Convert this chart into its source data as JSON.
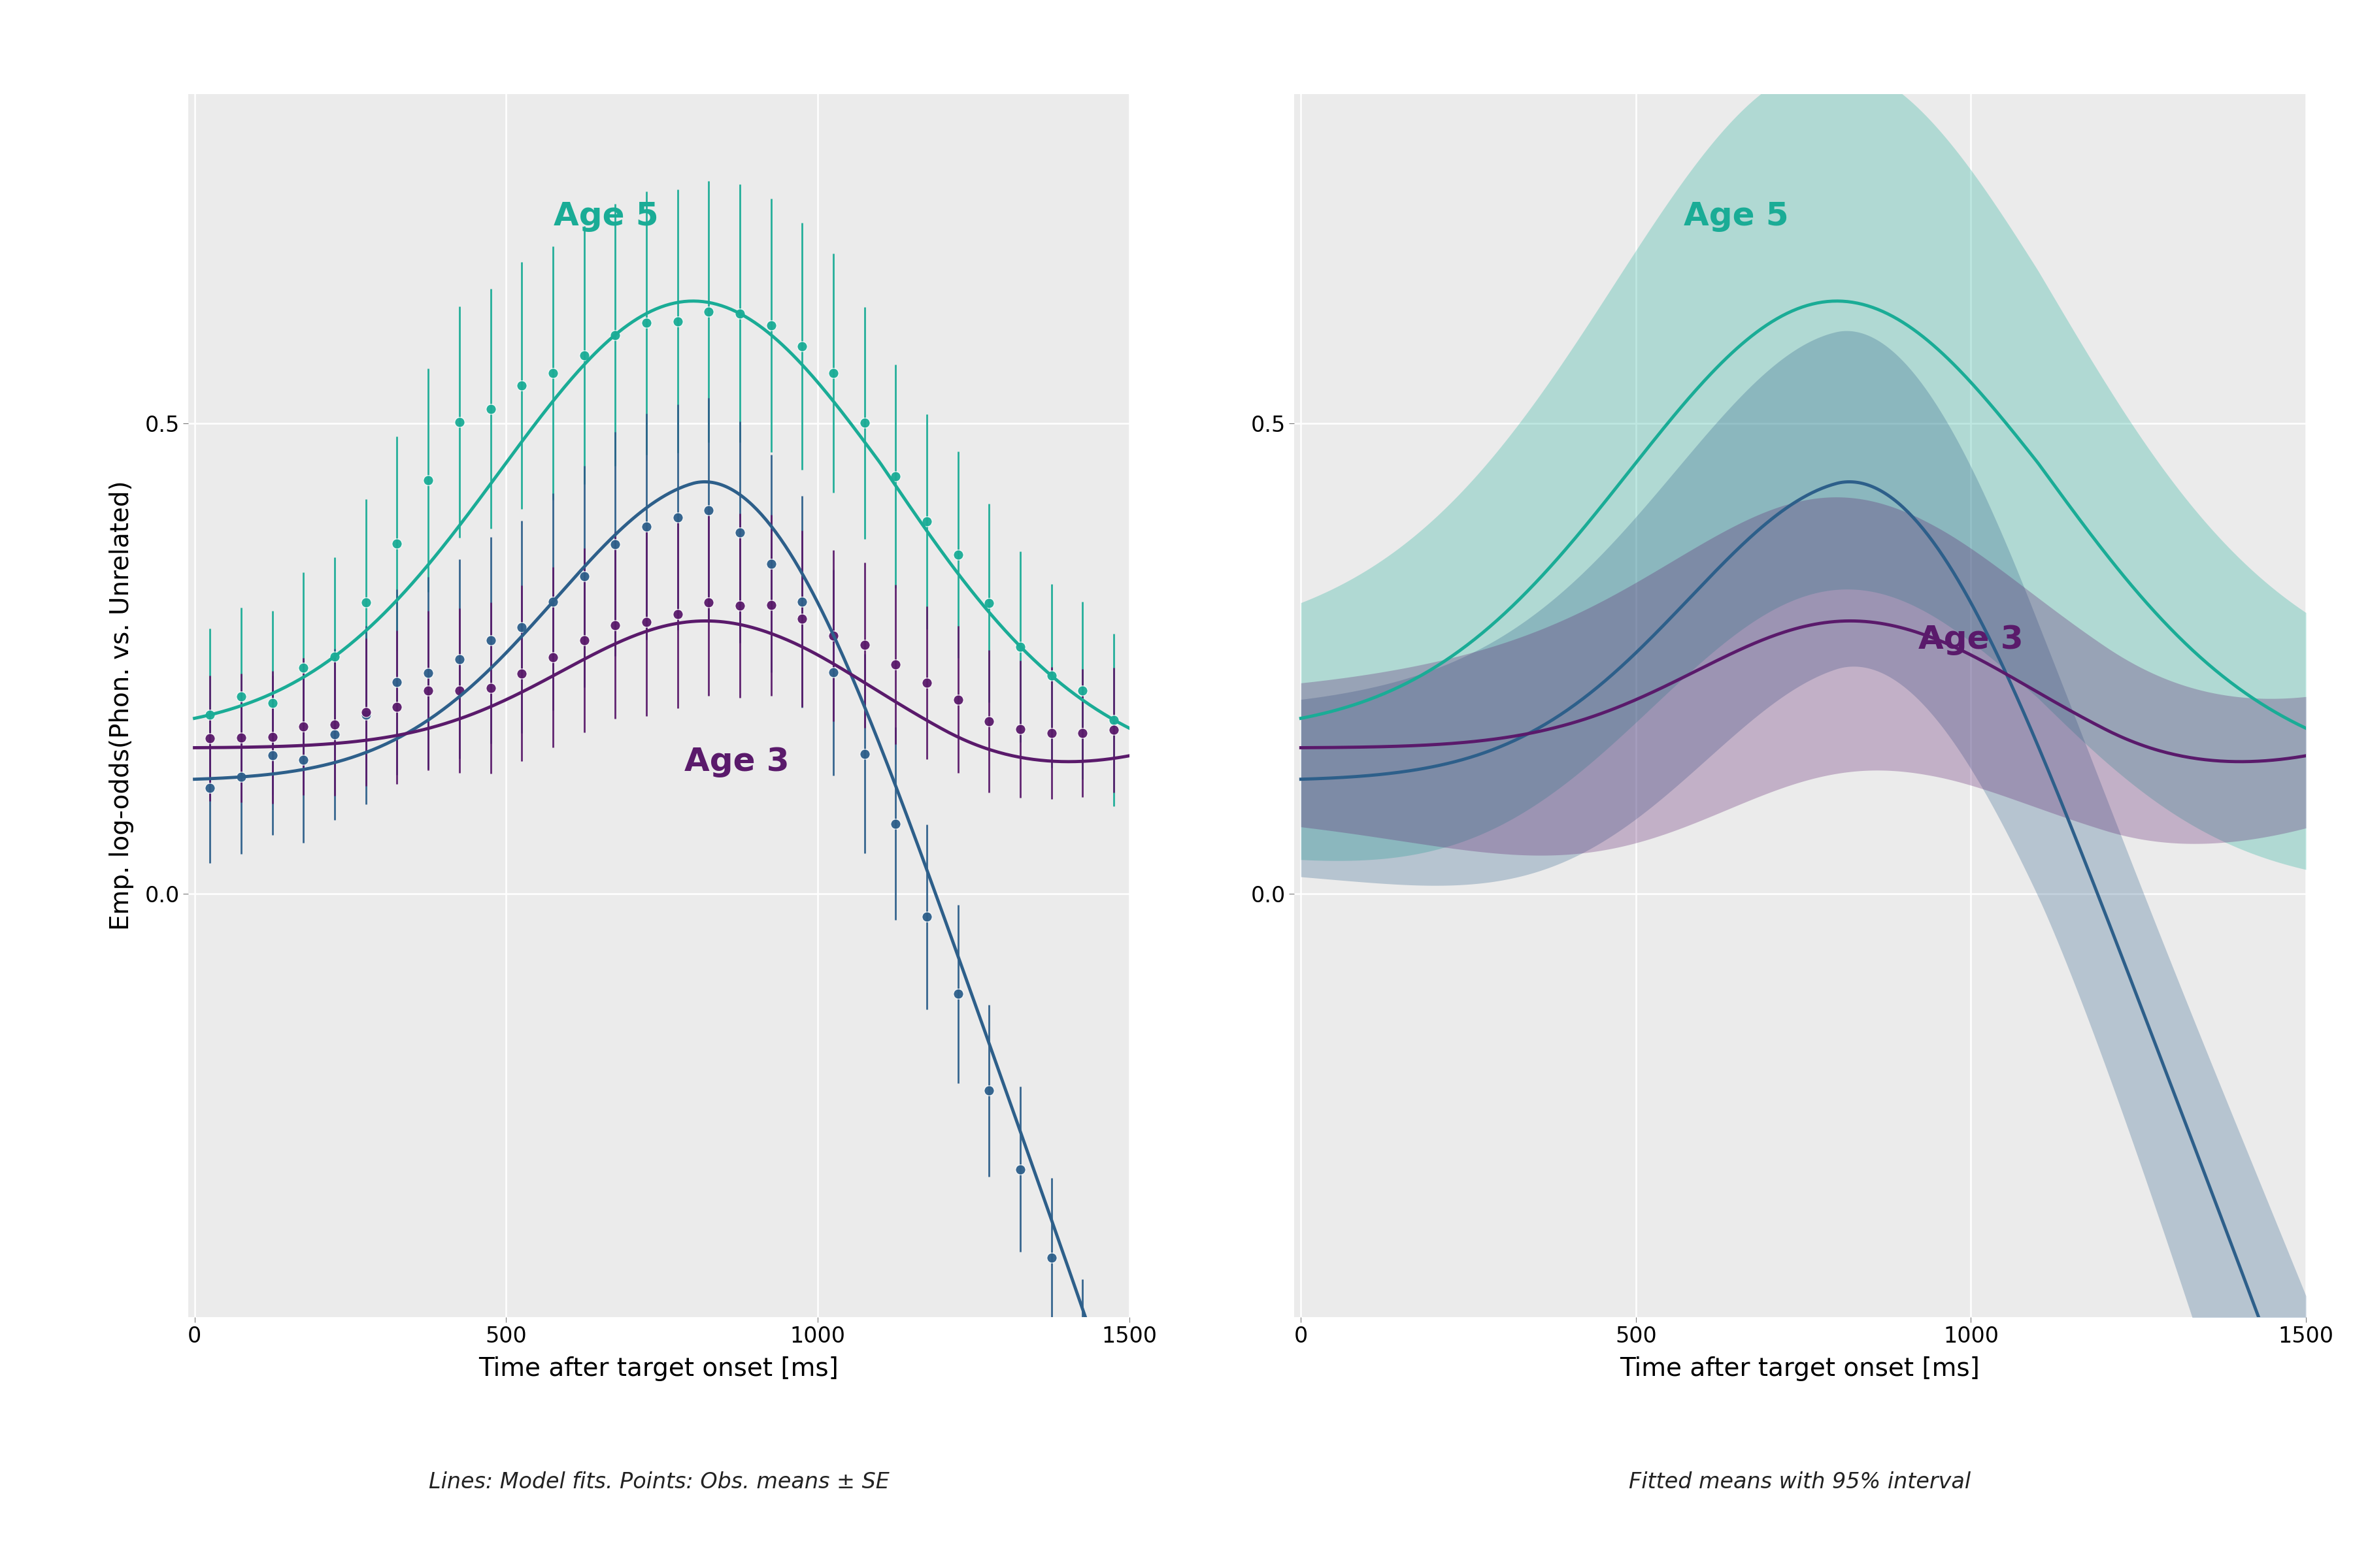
{
  "background_color": "#ffffff",
  "panel_bg": "#ebebeb",
  "colors": {
    "age3": "#5a1a6b",
    "age4": "#2d5f8a",
    "age5": "#1aac96"
  },
  "alpha_ribbon": 0.28,
  "ylim": [
    -0.45,
    0.85
  ],
  "xlim": [
    -10,
    1500
  ],
  "yticks": [
    0.0,
    0.5
  ],
  "xticks": [
    0,
    500,
    1000,
    1500
  ],
  "ylabel": "Emp. log-odds(Phon. vs. Unrelated)",
  "xlabel": "Time after target onset [ms]",
  "caption_left": "Lines: Model fits. Points: Obs. means ± SE",
  "caption_right": "Fitted means with 95% interval",
  "label_age5": "Age 5",
  "label_age3": "Age 3",
  "title_fontsize": 36,
  "axis_fontsize": 28,
  "tick_fontsize": 24,
  "caption_fontsize": 24,
  "line_width": 3.5,
  "marker_size": 11,
  "errorbar_lw": 2.0
}
